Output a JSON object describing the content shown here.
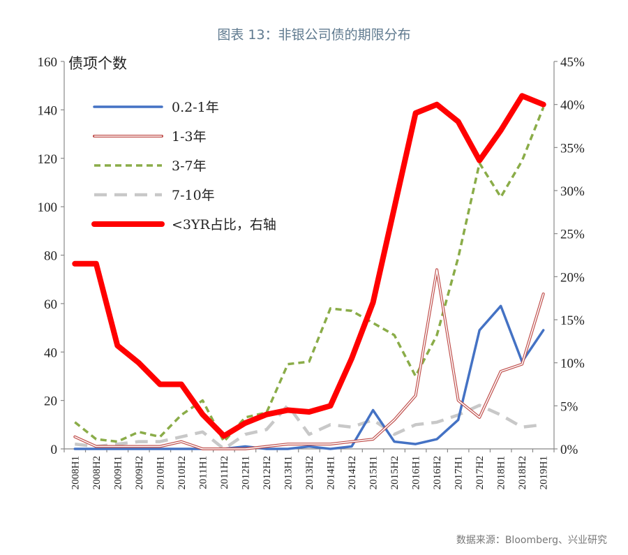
{
  "title": "图表 13：非银公司债的期限分布",
  "source": "数据来源：Bloomberg、兴业研究",
  "chart_data": {
    "type": "line",
    "ylabel": "债项个数",
    "ylim": [
      0,
      160
    ],
    "yticks": [
      "0",
      "20",
      "40",
      "60",
      "80",
      "100",
      "120",
      "140",
      "160"
    ],
    "y2lim": [
      0,
      45
    ],
    "y2ticks": [
      "0%",
      "5%",
      "10%",
      "15%",
      "20%",
      "25%",
      "30%",
      "35%",
      "40%",
      "45%"
    ],
    "categories": [
      "2008H1",
      "2008H2",
      "2009H1",
      "2009H2",
      "2010H1",
      "2010H2",
      "2011H1",
      "2011H2",
      "2012H1",
      "2012H2",
      "2013H1",
      "2013H2",
      "2014H1",
      "2014H2",
      "2015H1",
      "2015H2",
      "2016H1",
      "2016H2",
      "2017H1",
      "2017H2",
      "2018H1",
      "2018H2",
      "2019H1"
    ],
    "legend_position": "top-left",
    "grid": false,
    "series": [
      {
        "name": "0.2-1年",
        "axis": "left",
        "color": "#4472c4",
        "values": [
          0,
          0,
          0,
          0,
          0,
          0,
          0,
          0,
          1,
          0,
          0,
          1,
          0,
          1,
          16,
          3,
          2,
          4,
          12,
          49,
          59,
          36,
          49
        ]
      },
      {
        "name": "1-3年",
        "axis": "left",
        "color": "#c0504d",
        "values": [
          5,
          1,
          1,
          1,
          1,
          3,
          0,
          0,
          0,
          1,
          2,
          2,
          2,
          3,
          4,
          12,
          22,
          74,
          20,
          13,
          32,
          35,
          64
        ]
      },
      {
        "name": "3-7年",
        "axis": "left",
        "color": "#8aac48",
        "values": [
          11,
          4,
          3,
          7,
          5,
          14,
          20,
          3,
          13,
          15,
          35,
          36,
          58,
          57,
          52,
          47,
          30,
          47,
          79,
          118,
          104,
          119,
          141
        ]
      },
      {
        "name": "7-10年",
        "axis": "left",
        "color": "#c8c8c8",
        "values": [
          2,
          1,
          2,
          3,
          3,
          5,
          7,
          0,
          6,
          8,
          18,
          6,
          10,
          9,
          12,
          6,
          10,
          11,
          14,
          18,
          14,
          9,
          10
        ]
      },
      {
        "name": "<3YR占比，右轴",
        "axis": "right",
        "color": "#ff0000",
        "values": [
          21.5,
          21.5,
          12,
          10,
          7.5,
          7.5,
          4,
          1.5,
          3,
          4,
          4.5,
          4.3,
          5,
          10.5,
          17,
          28,
          39,
          40,
          38,
          33.5,
          37,
          41,
          40
        ]
      }
    ]
  }
}
